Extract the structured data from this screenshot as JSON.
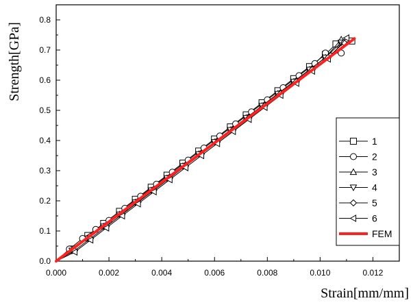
{
  "chart_data": {
    "type": "line",
    "title": "",
    "xlabel": "Strain[mm/mm]",
    "ylabel": "Strength[GPa]",
    "xlim": [
      0.0,
      0.013
    ],
    "ylim": [
      0.0,
      0.85
    ],
    "xticks": [
      "0.000",
      "0.002",
      "0.004",
      "0.006",
      "0.008",
      "0.010",
      "0.012"
    ],
    "yticks": [
      "0.0",
      "0.1",
      "0.2",
      "0.3",
      "0.4",
      "0.5",
      "0.6",
      "0.7",
      "0.8"
    ],
    "grid": false,
    "legend_position": "lower-right",
    "series": [
      {
        "name": "1",
        "marker": "square",
        "color": "#000000",
        "x": [
          0.0,
          0.0006,
          0.0012,
          0.0018,
          0.0024,
          0.003,
          0.0036,
          0.0042,
          0.0048,
          0.0054,
          0.006,
          0.0066,
          0.0072,
          0.0078,
          0.0084,
          0.009,
          0.0096,
          0.0102,
          0.0106,
          0.0112
        ],
        "y": [
          0.0,
          0.04,
          0.085,
          0.125,
          0.165,
          0.205,
          0.245,
          0.285,
          0.325,
          0.365,
          0.405,
          0.445,
          0.485,
          0.525,
          0.565,
          0.605,
          0.645,
          0.685,
          0.72,
          0.73
        ]
      },
      {
        "name": "2",
        "marker": "circle",
        "color": "#000000",
        "x": [
          0.0,
          0.0005,
          0.001,
          0.0015,
          0.002,
          0.0026,
          0.0032,
          0.0038,
          0.0044,
          0.005,
          0.0056,
          0.0062,
          0.0068,
          0.0074,
          0.008,
          0.0086,
          0.0092,
          0.0098,
          0.0102,
          0.0108
        ],
        "y": [
          0.0,
          0.04,
          0.075,
          0.105,
          0.135,
          0.175,
          0.215,
          0.255,
          0.295,
          0.335,
          0.375,
          0.415,
          0.455,
          0.495,
          0.535,
          0.575,
          0.615,
          0.655,
          0.69,
          0.69
        ]
      },
      {
        "name": "3",
        "marker": "triangle-up",
        "color": "#000000",
        "x": [
          0.0,
          0.0006,
          0.0012,
          0.0018,
          0.0024,
          0.003,
          0.0036,
          0.0042,
          0.0048,
          0.0054,
          0.006,
          0.0066,
          0.0072,
          0.0078,
          0.0084,
          0.009,
          0.0096,
          0.0102,
          0.0108
        ],
        "y": [
          0.0,
          0.035,
          0.075,
          0.115,
          0.155,
          0.195,
          0.235,
          0.275,
          0.315,
          0.355,
          0.395,
          0.435,
          0.475,
          0.515,
          0.555,
          0.595,
          0.635,
          0.675,
          0.735
        ]
      },
      {
        "name": "4",
        "marker": "triangle-down",
        "color": "#000000",
        "x": [
          0.0,
          0.0006,
          0.0012,
          0.0018,
          0.0024,
          0.003,
          0.0036,
          0.0042,
          0.0048,
          0.0054,
          0.006,
          0.0066,
          0.0072,
          0.0078,
          0.0084,
          0.009,
          0.0096,
          0.0102,
          0.0108
        ],
        "y": [
          0.0,
          0.035,
          0.075,
          0.115,
          0.155,
          0.195,
          0.235,
          0.275,
          0.315,
          0.355,
          0.395,
          0.435,
          0.475,
          0.515,
          0.555,
          0.595,
          0.635,
          0.675,
          0.725
        ]
      },
      {
        "name": "5",
        "marker": "diamond",
        "color": "#000000",
        "x": [
          0.0,
          0.0007,
          0.0013,
          0.0019,
          0.0025,
          0.0031,
          0.0037,
          0.0043,
          0.0049,
          0.0055,
          0.0061,
          0.0067,
          0.0073,
          0.0079,
          0.0085,
          0.0091,
          0.0097,
          0.0103,
          0.0109
        ],
        "y": [
          0.0,
          0.035,
          0.075,
          0.115,
          0.155,
          0.195,
          0.235,
          0.275,
          0.315,
          0.355,
          0.395,
          0.435,
          0.475,
          0.515,
          0.555,
          0.595,
          0.635,
          0.675,
          0.725
        ]
      },
      {
        "name": "6",
        "marker": "triangle-left",
        "color": "#000000",
        "x": [
          0.0,
          0.0007,
          0.0013,
          0.0019,
          0.0025,
          0.0031,
          0.0037,
          0.0043,
          0.0049,
          0.0055,
          0.0061,
          0.0067,
          0.0073,
          0.0079,
          0.0085,
          0.0091,
          0.0097,
          0.0103,
          0.011
        ],
        "y": [
          0.0,
          0.03,
          0.07,
          0.11,
          0.15,
          0.19,
          0.23,
          0.27,
          0.31,
          0.35,
          0.39,
          0.43,
          0.47,
          0.51,
          0.55,
          0.59,
          0.63,
          0.67,
          0.74
        ]
      },
      {
        "name": "FEM",
        "marker": "none",
        "color": "#ff2020",
        "x": [
          0.0,
          0.0113
        ],
        "y": [
          0.0,
          0.738
        ]
      }
    ]
  }
}
